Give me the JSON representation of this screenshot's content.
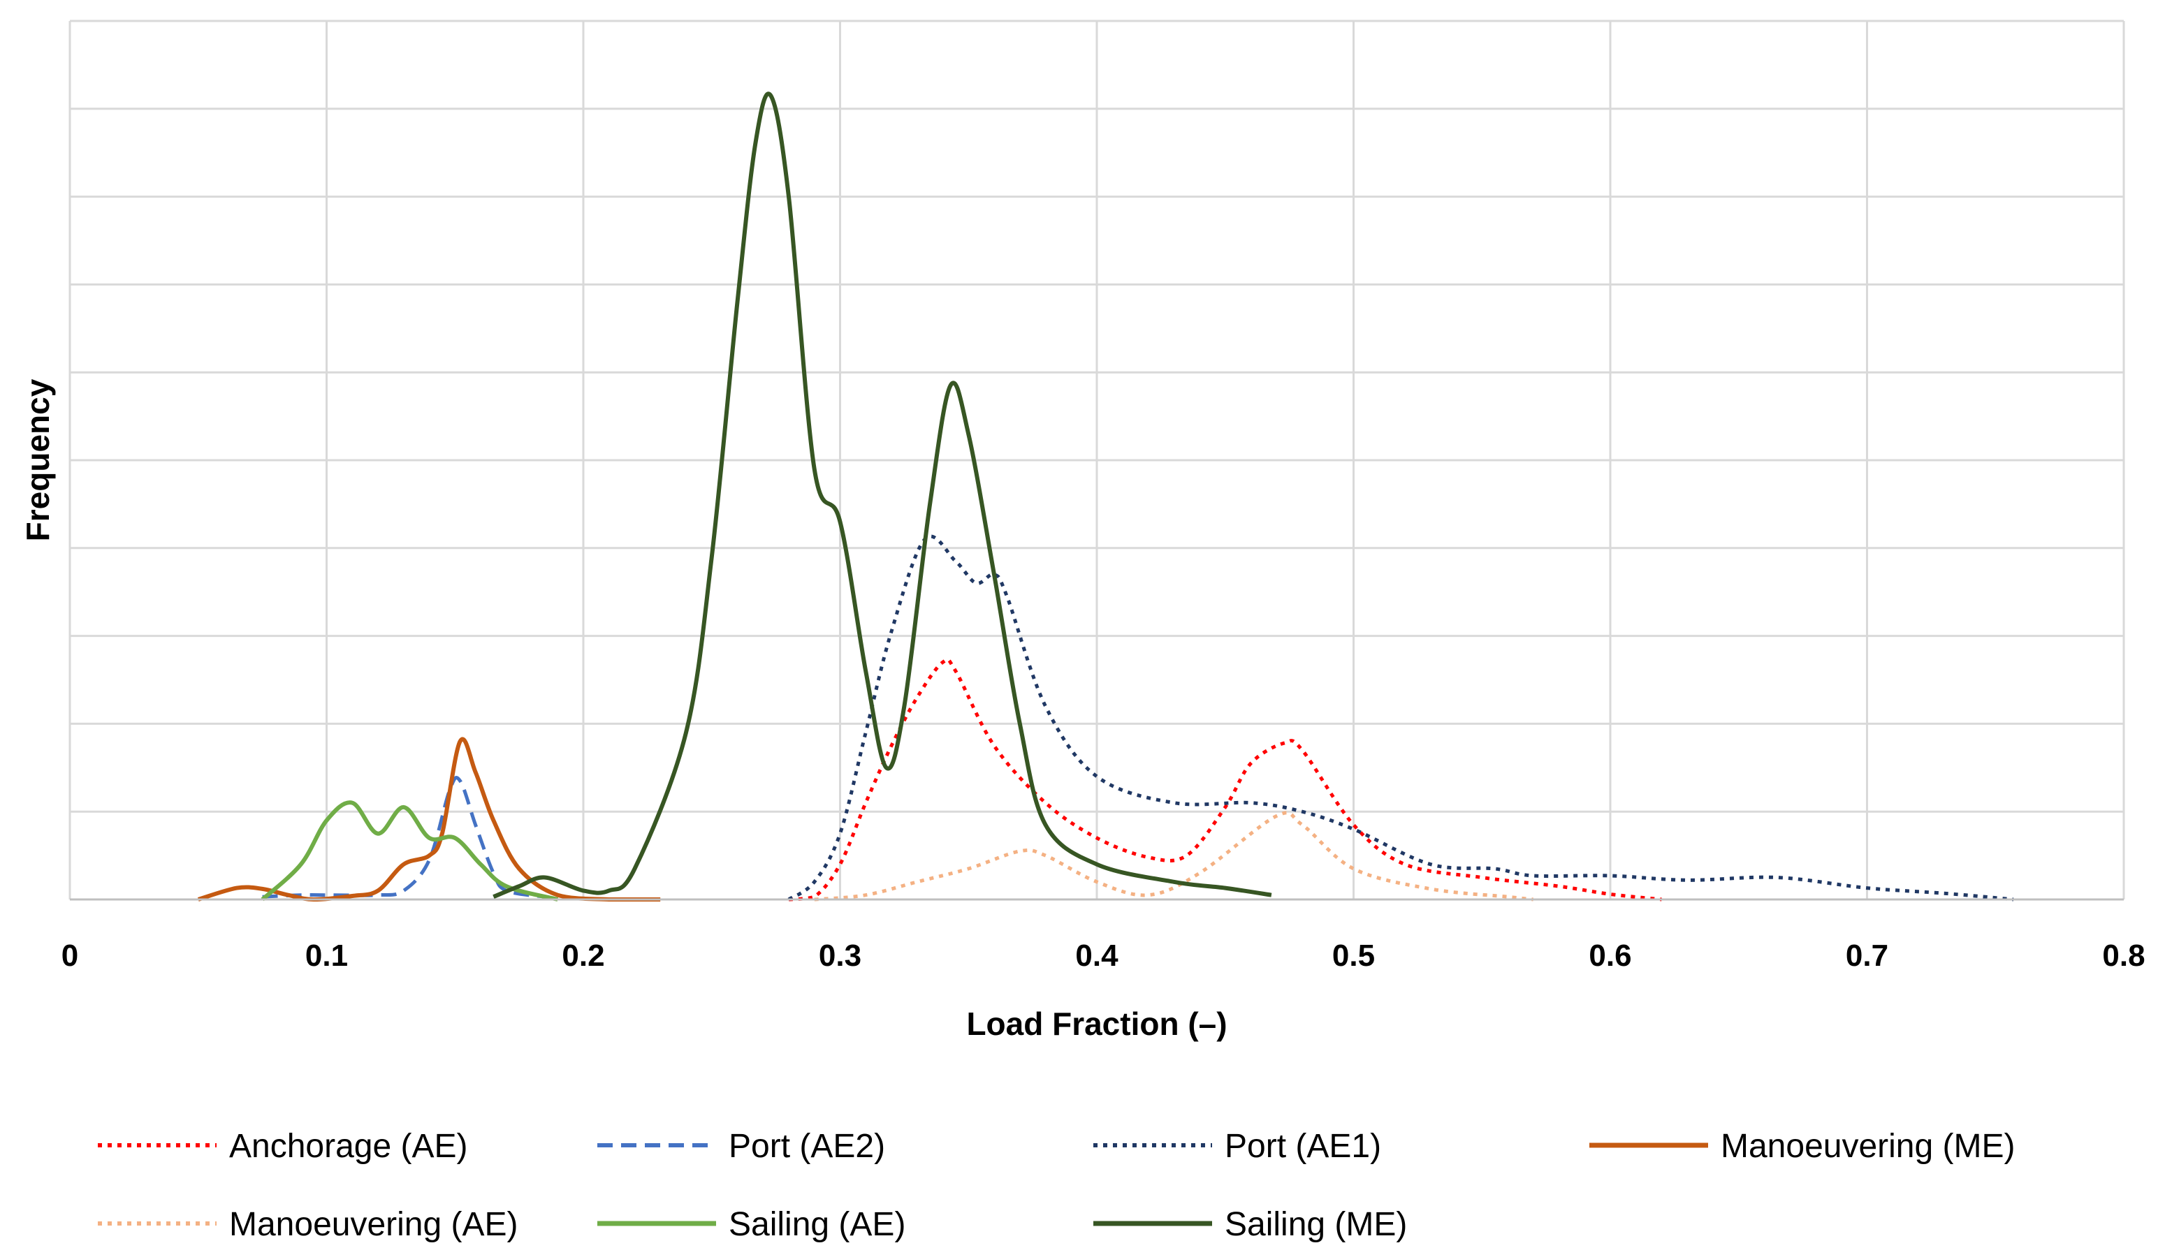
{
  "chart_data": {
    "type": "line",
    "title": "",
    "xlabel": "Load Fraction (–)",
    "ylabel": "Frequency",
    "xlim": [
      0,
      0.8
    ],
    "ylim": [
      0,
      10
    ],
    "x_ticks": [
      "0",
      "0.1",
      "0.2",
      "0.3",
      "0.4",
      "0.5",
      "0.6",
      "0.7",
      "0.8"
    ],
    "y_ticks_labeled": false,
    "grid": true,
    "legend_position": "bottom",
    "series": [
      {
        "name": "Anchorage (AE)",
        "color": "#ff0000",
        "dash": "dotted",
        "points": [
          [
            0.28,
            0.0
          ],
          [
            0.29,
            0.03
          ],
          [
            0.3,
            0.4
          ],
          [
            0.31,
            1.1
          ],
          [
            0.32,
            1.75
          ],
          [
            0.33,
            2.3
          ],
          [
            0.34,
            2.7
          ],
          [
            0.345,
            2.6
          ],
          [
            0.36,
            1.75
          ],
          [
            0.38,
            1.1
          ],
          [
            0.4,
            0.7
          ],
          [
            0.42,
            0.48
          ],
          [
            0.435,
            0.5
          ],
          [
            0.45,
            1.05
          ],
          [
            0.46,
            1.55
          ],
          [
            0.473,
            1.78
          ],
          [
            0.48,
            1.7
          ],
          [
            0.5,
            0.85
          ],
          [
            0.52,
            0.4
          ],
          [
            0.55,
            0.25
          ],
          [
            0.58,
            0.15
          ],
          [
            0.6,
            0.06
          ],
          [
            0.62,
            0.0
          ]
        ]
      },
      {
        "name": "Port (AE2)",
        "color": "#4472c4",
        "dash": "dashed",
        "points": [
          [
            0.075,
            0.03
          ],
          [
            0.09,
            0.05
          ],
          [
            0.1,
            0.05
          ],
          [
            0.12,
            0.05
          ],
          [
            0.13,
            0.1
          ],
          [
            0.14,
            0.45
          ],
          [
            0.148,
            1.25
          ],
          [
            0.152,
            1.35
          ],
          [
            0.158,
            0.85
          ],
          [
            0.165,
            0.3
          ],
          [
            0.17,
            0.1
          ],
          [
            0.185,
            0.03
          ]
        ]
      },
      {
        "name": "Port (AE1)",
        "color": "#203864",
        "dash": "dotted",
        "points": [
          [
            0.28,
            0.0
          ],
          [
            0.29,
            0.2
          ],
          [
            0.3,
            0.75
          ],
          [
            0.31,
            1.9
          ],
          [
            0.32,
            3.05
          ],
          [
            0.333,
            4.1
          ],
          [
            0.345,
            3.85
          ],
          [
            0.353,
            3.6
          ],
          [
            0.36,
            3.7
          ],
          [
            0.365,
            3.45
          ],
          [
            0.38,
            2.2
          ],
          [
            0.4,
            1.4
          ],
          [
            0.43,
            1.1
          ],
          [
            0.46,
            1.1
          ],
          [
            0.48,
            1.0
          ],
          [
            0.5,
            0.8
          ],
          [
            0.53,
            0.4
          ],
          [
            0.555,
            0.35
          ],
          [
            0.57,
            0.27
          ],
          [
            0.6,
            0.27
          ],
          [
            0.63,
            0.22
          ],
          [
            0.665,
            0.25
          ],
          [
            0.7,
            0.13
          ],
          [
            0.73,
            0.07
          ],
          [
            0.757,
            0.0
          ]
        ]
      },
      {
        "name": "Manoeuvering (ME)",
        "color": "#c55a11",
        "dash": "solid",
        "points": [
          [
            0.05,
            0.0
          ],
          [
            0.065,
            0.13
          ],
          [
            0.075,
            0.12
          ],
          [
            0.085,
            0.05
          ],
          [
            0.095,
            0.0
          ],
          [
            0.11,
            0.04
          ],
          [
            0.12,
            0.1
          ],
          [
            0.13,
            0.4
          ],
          [
            0.14,
            0.5
          ],
          [
            0.145,
            0.75
          ],
          [
            0.152,
            1.8
          ],
          [
            0.158,
            1.45
          ],
          [
            0.165,
            0.9
          ],
          [
            0.175,
            0.35
          ],
          [
            0.19,
            0.05
          ],
          [
            0.21,
            0.0
          ],
          [
            0.23,
            0.0
          ]
        ]
      },
      {
        "name": "Manoeuvering (AE)",
        "color": "#f4b183",
        "dash": "dotted",
        "points": [
          [
            0.29,
            0.0
          ],
          [
            0.31,
            0.05
          ],
          [
            0.33,
            0.2
          ],
          [
            0.35,
            0.35
          ],
          [
            0.37,
            0.55
          ],
          [
            0.38,
            0.5
          ],
          [
            0.4,
            0.2
          ],
          [
            0.42,
            0.05
          ],
          [
            0.44,
            0.3
          ],
          [
            0.47,
            0.95
          ],
          [
            0.48,
            0.85
          ],
          [
            0.5,
            0.35
          ],
          [
            0.53,
            0.12
          ],
          [
            0.56,
            0.03
          ],
          [
            0.57,
            0.0
          ]
        ]
      },
      {
        "name": "Sailing (AE)",
        "color": "#70ad47",
        "dash": "solid",
        "points": [
          [
            0.075,
            0.0
          ],
          [
            0.09,
            0.4
          ],
          [
            0.1,
            0.9
          ],
          [
            0.11,
            1.1
          ],
          [
            0.12,
            0.75
          ],
          [
            0.13,
            1.05
          ],
          [
            0.14,
            0.7
          ],
          [
            0.15,
            0.7
          ],
          [
            0.16,
            0.4
          ],
          [
            0.17,
            0.15
          ],
          [
            0.19,
            0.0
          ]
        ]
      },
      {
        "name": "Sailing (ME)",
        "color": "#375623",
        "dash": "solid",
        "points": [
          [
            0.165,
            0.03
          ],
          [
            0.175,
            0.15
          ],
          [
            0.185,
            0.25
          ],
          [
            0.2,
            0.1
          ],
          [
            0.21,
            0.1
          ],
          [
            0.22,
            0.35
          ],
          [
            0.24,
            1.9
          ],
          [
            0.25,
            3.9
          ],
          [
            0.26,
            6.8
          ],
          [
            0.267,
            8.6
          ],
          [
            0.273,
            9.15
          ],
          [
            0.28,
            8.0
          ],
          [
            0.29,
            4.9
          ],
          [
            0.3,
            4.3
          ],
          [
            0.31,
            2.6
          ],
          [
            0.318,
            1.5
          ],
          [
            0.325,
            2.2
          ],
          [
            0.335,
            4.5
          ],
          [
            0.343,
            5.85
          ],
          [
            0.35,
            5.3
          ],
          [
            0.36,
            3.7
          ],
          [
            0.37,
            2.0
          ],
          [
            0.38,
            0.85
          ],
          [
            0.4,
            0.4
          ],
          [
            0.43,
            0.2
          ],
          [
            0.45,
            0.13
          ],
          [
            0.468,
            0.05
          ]
        ]
      }
    ]
  }
}
